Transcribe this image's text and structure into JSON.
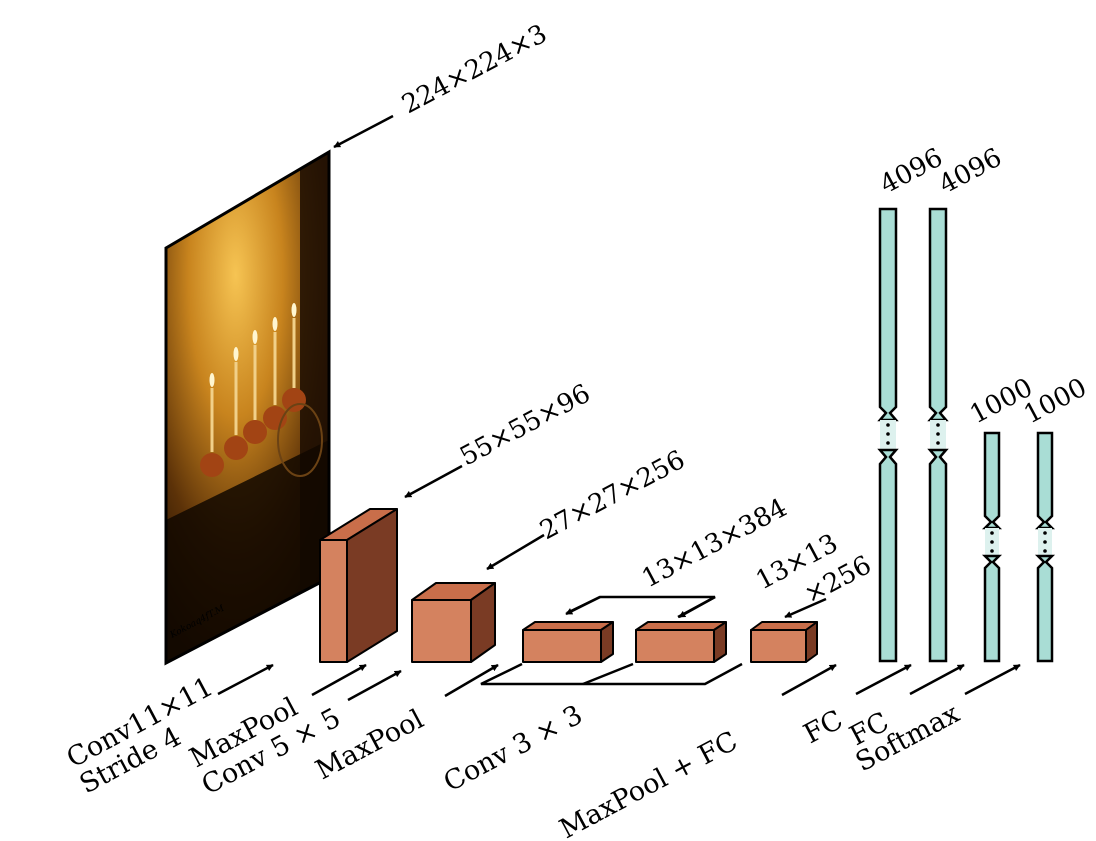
{
  "input": {
    "dims": "224×224×3",
    "image_subject": "candles on a table",
    "watermark": "Kokoaq4fT.M"
  },
  "dims": {
    "conv1": "55×55×96",
    "conv2": "27×27×256",
    "conv3": "13×13×384",
    "conv5_line1": "13×13",
    "conv5_line2": "×256",
    "fc6": "4096",
    "fc7": "4096",
    "fc8": "1000",
    "softmax": "1000"
  },
  "ops": {
    "conv1_line1": "Conv11×11",
    "conv1_line2": "Stride 4",
    "pool1_line1": "MaxPool",
    "pool1_line2": "Conv 5 × 5",
    "pool2": "MaxPool",
    "conv3x3": "Conv 3 × 3",
    "pool_fc": "MaxPool + FC",
    "fc_a": "FC",
    "fc_b": "FC",
    "softmax": "Softmax"
  },
  "colors": {
    "conv_block": "#D4825F",
    "conv_side": "#7A3B24",
    "fc_block": "#A9DDD5",
    "arrows": "#000000"
  }
}
